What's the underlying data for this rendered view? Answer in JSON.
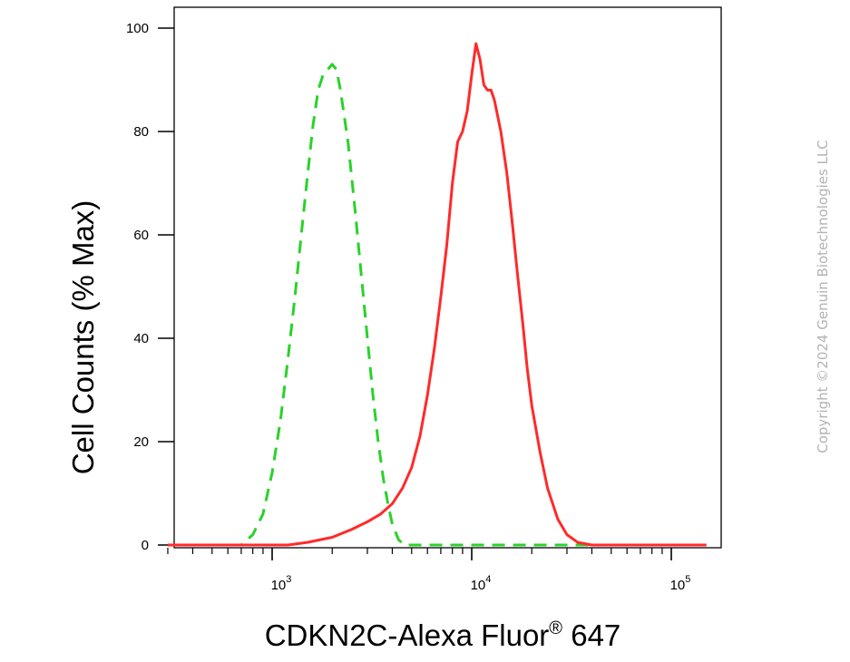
{
  "copyright": "Copyright ©2024 Genuin Biotechnologies LLC",
  "chart_data": {
    "type": "line",
    "xlabel": "CDKN2C-Alexa Fluor",
    "xlabel_sup": "®",
    "xlabel_suffix": " 647",
    "ylabel": "Cell Counts (% Max)",
    "x_scale": "log",
    "xlim": [
      300,
      150000
    ],
    "ylim": [
      0,
      104
    ],
    "y_ticks": [
      0,
      20,
      40,
      60,
      80,
      100
    ],
    "x_ticks": [
      {
        "base": "10",
        "exp": "3"
      },
      {
        "base": "10",
        "exp": "4"
      },
      {
        "base": "10",
        "exp": "5"
      }
    ],
    "grid": false,
    "series": [
      {
        "color": "#2bd12b",
        "style": "dashed",
        "points": [
          [
            300,
            0
          ],
          [
            700,
            0
          ],
          [
            800,
            2
          ],
          [
            900,
            6
          ],
          [
            1000,
            14
          ],
          [
            1100,
            24
          ],
          [
            1200,
            36
          ],
          [
            1300,
            48
          ],
          [
            1400,
            60
          ],
          [
            1500,
            71
          ],
          [
            1600,
            81
          ],
          [
            1700,
            88
          ],
          [
            1800,
            91
          ],
          [
            1900,
            92
          ],
          [
            2000,
            93
          ],
          [
            2100,
            92
          ],
          [
            2200,
            88
          ],
          [
            2400,
            78
          ],
          [
            2600,
            65
          ],
          [
            2800,
            52
          ],
          [
            3000,
            40
          ],
          [
            3200,
            29
          ],
          [
            3400,
            20
          ],
          [
            3600,
            13
          ],
          [
            3800,
            8
          ],
          [
            4000,
            4
          ],
          [
            4300,
            1
          ],
          [
            4600,
            0
          ],
          [
            150000,
            0
          ]
        ]
      },
      {
        "color": "#ff2a2a",
        "style": "solid",
        "points": [
          [
            300,
            0
          ],
          [
            1200,
            0
          ],
          [
            1500,
            0.5
          ],
          [
            2000,
            1.5
          ],
          [
            2500,
            3
          ],
          [
            3000,
            4.5
          ],
          [
            3500,
            6
          ],
          [
            4000,
            8
          ],
          [
            4500,
            11
          ],
          [
            5000,
            15
          ],
          [
            5500,
            21
          ],
          [
            6000,
            29
          ],
          [
            6500,
            38
          ],
          [
            7000,
            48
          ],
          [
            7500,
            58
          ],
          [
            8000,
            70
          ],
          [
            8500,
            78
          ],
          [
            9000,
            80
          ],
          [
            9500,
            84
          ],
          [
            10000,
            91
          ],
          [
            10500,
            97
          ],
          [
            11000,
            94
          ],
          [
            11500,
            89
          ],
          [
            12000,
            88
          ],
          [
            12500,
            88
          ],
          [
            13000,
            86
          ],
          [
            14000,
            80
          ],
          [
            15000,
            72
          ],
          [
            16000,
            62
          ],
          [
            17000,
            52
          ],
          [
            18000,
            43
          ],
          [
            19000,
            34
          ],
          [
            20000,
            27
          ],
          [
            22000,
            18
          ],
          [
            24000,
            11
          ],
          [
            27000,
            5
          ],
          [
            30000,
            2
          ],
          [
            34000,
            0.5
          ],
          [
            40000,
            0
          ],
          [
            150000,
            0
          ]
        ]
      }
    ]
  }
}
